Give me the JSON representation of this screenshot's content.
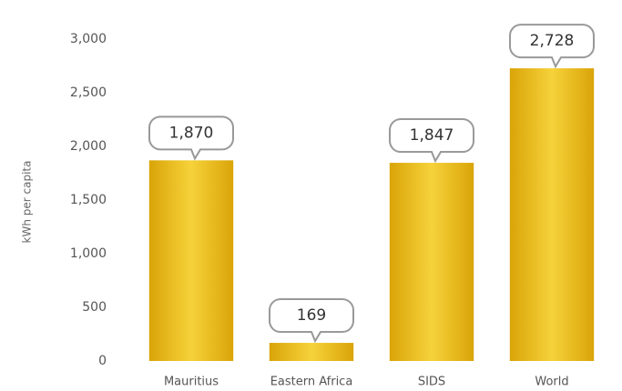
{
  "chart_data": {
    "type": "bar",
    "y_axis_label": "kWh per capita",
    "categories": [
      "Mauritius",
      "Eastern Africa",
      "SIDS",
      "World"
    ],
    "values": [
      1870,
      169,
      1847,
      2728
    ],
    "value_labels": [
      "1,870",
      "169",
      "1,847",
      "2,728"
    ],
    "color": "#e8b912",
    "ylim": [
      0,
      3000
    ],
    "yticks": [
      0,
      500,
      {
        "value": 1000,
        "label": "1,000"
      },
      {
        "value": 1500,
        "label": "1,500"
      },
      {
        "value": 2000,
        "label": "2,000"
      },
      {
        "value": 2500,
        "label": "2,500"
      },
      {
        "value": 3000,
        "label": "3,000"
      }
    ],
    "grid": false
  }
}
